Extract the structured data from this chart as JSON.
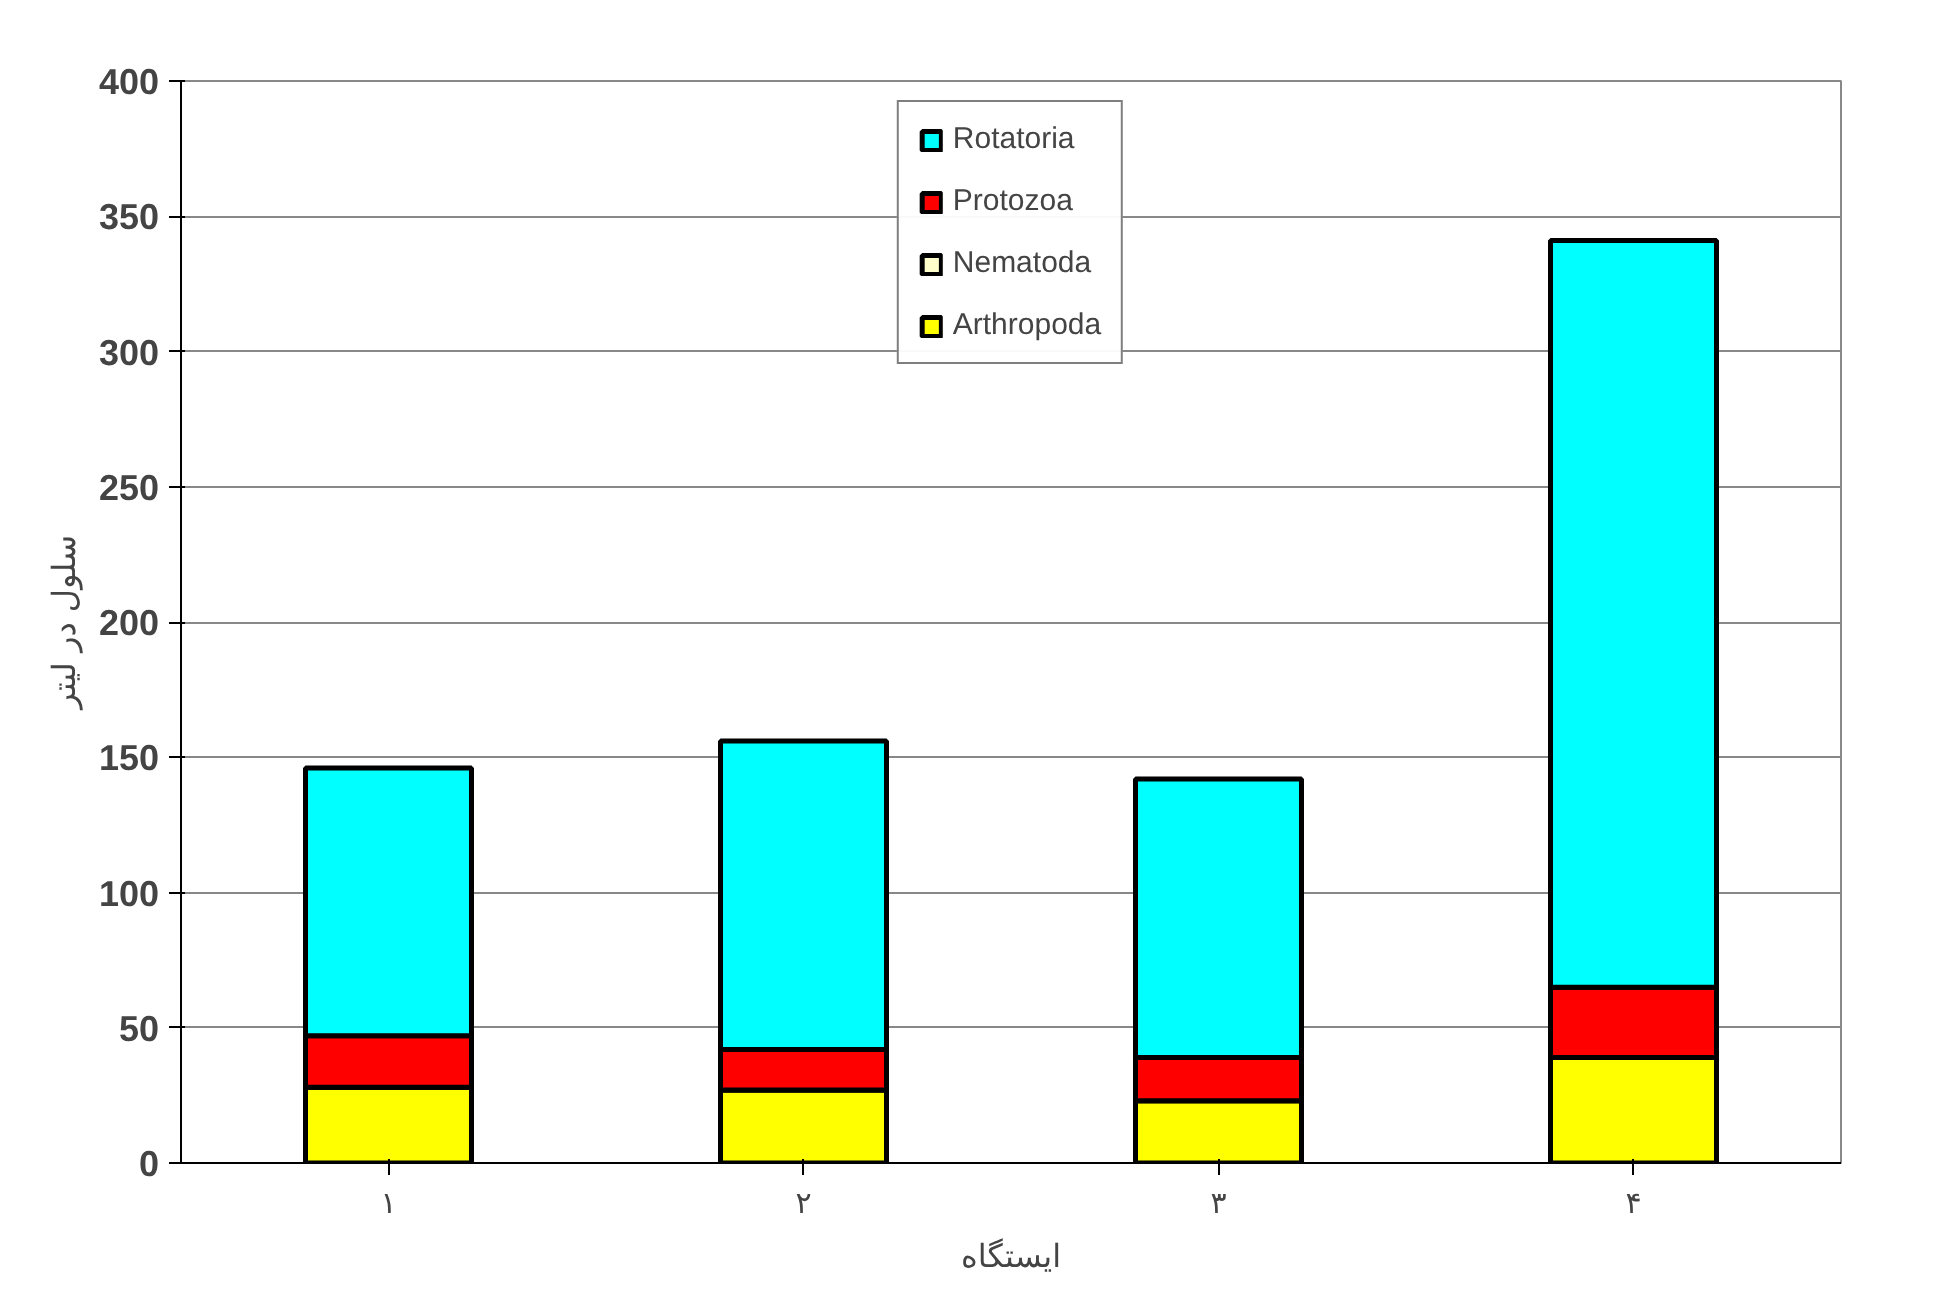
{
  "chart_data": {
    "type": "bar",
    "stacked": true,
    "xlabel": "ایستگاه",
    "ylabel": "سلول در لیتر",
    "categories": [
      "۱",
      "۲",
      "۳",
      "۴"
    ],
    "series": [
      {
        "name": "Arthropoda",
        "color": "#ffff00",
        "values": [
          28,
          27,
          23,
          39
        ]
      },
      {
        "name": "Nematoda",
        "color": "#ffffcc",
        "values": [
          0,
          0,
          0,
          0
        ]
      },
      {
        "name": "Protozoa",
        "color": "#ff0000",
        "values": [
          19,
          15,
          16,
          26
        ]
      },
      {
        "name": "Rotatoria",
        "color": "#00ffff",
        "values": [
          99,
          114,
          103,
          276
        ]
      }
    ],
    "ylim": [
      0,
      400
    ],
    "yticks": [
      0,
      50,
      100,
      150,
      200,
      250,
      300,
      350,
      400
    ],
    "grid": "y",
    "legend": "top"
  }
}
